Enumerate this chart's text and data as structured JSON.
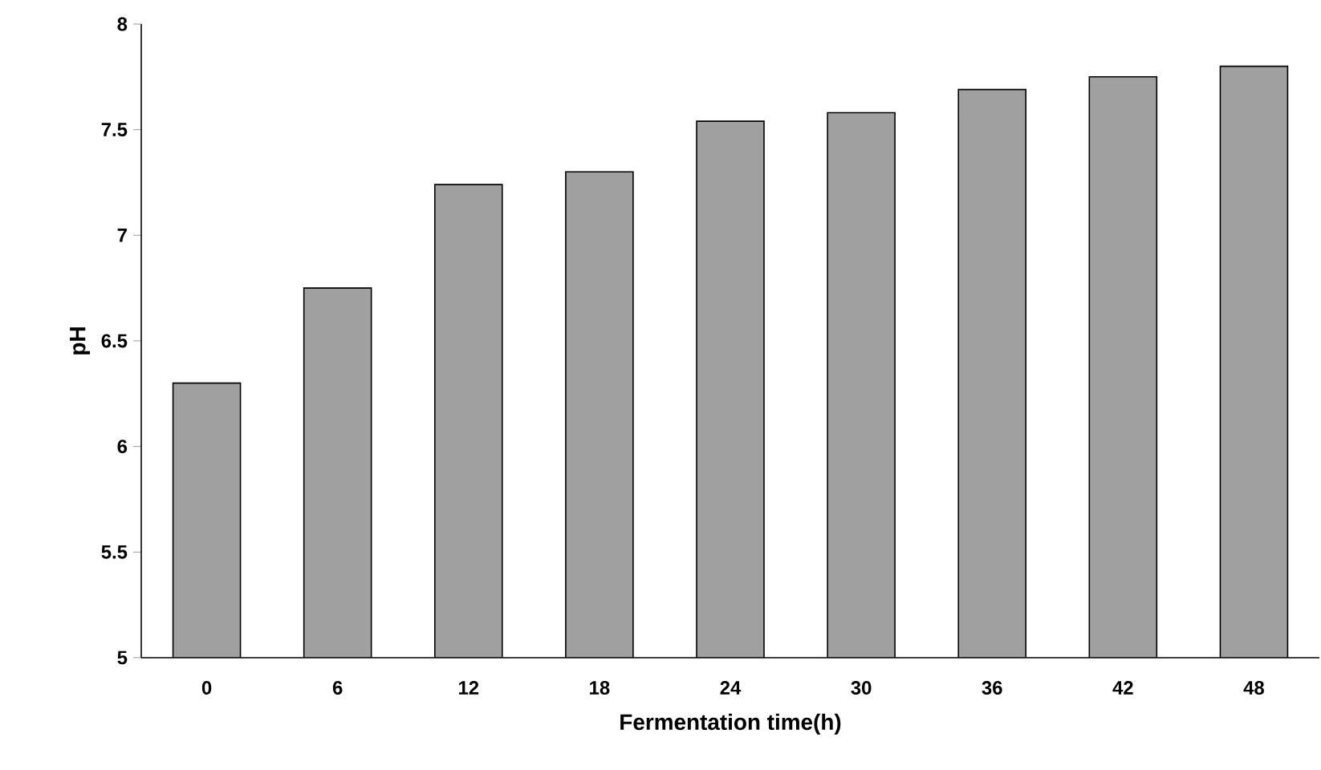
{
  "chart_data": {
    "type": "bar",
    "xlabel": "Fermentation time(h)",
    "ylabel": "pH",
    "categories": [
      "0",
      "6",
      "12",
      "18",
      "24",
      "30",
      "36",
      "42",
      "48"
    ],
    "values": [
      6.3,
      6.75,
      7.24,
      7.3,
      7.54,
      7.58,
      7.69,
      7.75,
      7.8
    ],
    "color": "#a0a0a0",
    "ylim": [
      5,
      8
    ],
    "yticks": [
      5,
      5.5,
      6,
      6.5,
      7,
      7.5,
      8
    ]
  }
}
